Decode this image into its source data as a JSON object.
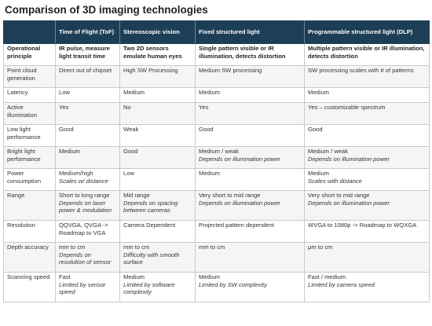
{
  "title": "Comparison of 3D imaging technologies",
  "columns": [
    "",
    "Time of Flight (ToF)",
    "Stereoscopic vision",
    "Fixed structured light",
    "Programmable structured light (DLP)"
  ],
  "rows": [
    {
      "label": "Operational principle",
      "cells": [
        {
          "main": "IR pulse, measure light transit time",
          "note": ""
        },
        {
          "main": "Two 2D sensors emulate human eyes",
          "note": ""
        },
        {
          "main": "Single pattern visible or IR illumination, detects distortion",
          "note": ""
        },
        {
          "main": "Multiple pattern visible or IR illumination, detects distortion",
          "note": ""
        }
      ]
    },
    {
      "label": "Point cloud generation",
      "cells": [
        {
          "main": "Direct out of chipset",
          "note": ""
        },
        {
          "main": "High SW Processing",
          "note": ""
        },
        {
          "main": "Medium SW processing",
          "note": ""
        },
        {
          "main": "SW processing scales with # of patterns",
          "note": ""
        }
      ]
    },
    {
      "label": "Latency",
      "cells": [
        {
          "main": "Low",
          "note": ""
        },
        {
          "main": "Medium",
          "note": ""
        },
        {
          "main": "Medium",
          "note": ""
        },
        {
          "main": "Medium",
          "note": ""
        }
      ]
    },
    {
      "label": "Active illumination",
      "cells": [
        {
          "main": "Yes",
          "note": ""
        },
        {
          "main": "No",
          "note": ""
        },
        {
          "main": "Yes",
          "note": ""
        },
        {
          "main": "Yes – customizable spectrum",
          "note": ""
        }
      ]
    },
    {
      "label": "Low light performance",
      "cells": [
        {
          "main": "Good",
          "note": ""
        },
        {
          "main": "Weak",
          "note": ""
        },
        {
          "main": "Good",
          "note": ""
        },
        {
          "main": "Good",
          "note": ""
        }
      ]
    },
    {
      "label": "Bright light performance",
      "cells": [
        {
          "main": "Medium",
          "note": ""
        },
        {
          "main": "Good",
          "note": ""
        },
        {
          "main": "Medium / weak",
          "note": "Depends on illumination power"
        },
        {
          "main": "Medium / weak",
          "note": "Depends on illumination power"
        }
      ]
    },
    {
      "label": "Power consumption",
      "cells": [
        {
          "main": "Medium/high",
          "note": "Scales w/ distance"
        },
        {
          "main": "Low",
          "note": ""
        },
        {
          "main": "Medium",
          "note": ""
        },
        {
          "main": "Medium",
          "note": "Scales with distance"
        }
      ]
    },
    {
      "label": "Range",
      "cells": [
        {
          "main": "Short to long range",
          "note": "Depends on laser power & modulation"
        },
        {
          "main": "Mid range",
          "note": "Depends on spacing between cameras"
        },
        {
          "main": "Very short to mid range",
          "note": "Depends on illumination power"
        },
        {
          "main": "Very short to mid range",
          "note": "Depends on illumination power"
        }
      ]
    },
    {
      "label": "Resolution",
      "cells": [
        {
          "main": "QQVGA, QVGA -> Roadmap to VGA",
          "note": ""
        },
        {
          "main": "Camera Dependent",
          "note": ""
        },
        {
          "main": "Projected pattern dependent",
          "note": ""
        },
        {
          "main": "WVGA to 1080p -> Roadmap to WQXGA",
          "note": ""
        }
      ]
    },
    {
      "label": "Depth accuracy",
      "cells": [
        {
          "main": "mm to cm",
          "note": "Depends on resolution of sensor"
        },
        {
          "main": "mm to cm",
          "note": "Difficulty with smooth surface"
        },
        {
          "main": "mm to cm",
          "note": ""
        },
        {
          "main": "μm to cm",
          "note": ""
        }
      ]
    },
    {
      "label": "Scanning speed",
      "cells": [
        {
          "main": "Fast",
          "note": "Limited by sensor speed"
        },
        {
          "main": "Medium",
          "note": "Limited by software complexity"
        },
        {
          "main": "Medium",
          "note": "Limited by SW complexity"
        },
        {
          "main": "Fast / medium",
          "note": "Limited by camera speed"
        }
      ]
    }
  ]
}
